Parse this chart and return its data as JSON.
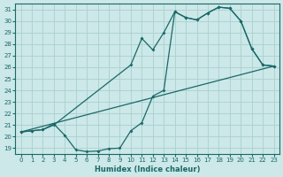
{
  "xlabel": "Humidex (Indice chaleur)",
  "bg_color": "#cce8e8",
  "grid_color": "#aad0d0",
  "line_color": "#1a6868",
  "xlim": [
    -0.5,
    23.5
  ],
  "ylim": [
    18.5,
    31.5
  ],
  "xticks": [
    0,
    1,
    2,
    3,
    4,
    5,
    6,
    7,
    8,
    9,
    10,
    11,
    12,
    13,
    14,
    15,
    16,
    17,
    18,
    19,
    20,
    21,
    22,
    23
  ],
  "yticks": [
    19,
    20,
    21,
    22,
    23,
    24,
    25,
    26,
    27,
    28,
    29,
    30,
    31
  ],
  "line1_x": [
    0,
    1,
    2,
    3,
    10,
    11,
    12,
    13,
    14,
    15,
    16,
    17,
    18,
    19,
    20,
    21,
    22,
    23
  ],
  "line1_y": [
    20.4,
    20.5,
    20.6,
    21.0,
    26.2,
    28.5,
    27.5,
    29.0,
    30.8,
    30.3,
    30.1,
    30.7,
    31.2,
    31.1,
    30.0,
    27.6,
    26.2,
    26.1
  ],
  "line2_x": [
    0,
    23
  ],
  "line2_y": [
    20.4,
    26.1
  ],
  "line3_x": [
    0,
    1,
    2,
    3,
    4,
    5,
    6,
    7,
    8,
    9,
    10,
    11,
    12,
    13,
    14,
    15,
    16,
    17,
    18,
    19,
    20,
    21,
    22,
    23
  ],
  "line3_y": [
    20.4,
    20.5,
    20.6,
    21.1,
    20.1,
    18.85,
    18.7,
    18.75,
    18.95,
    19.0,
    20.5,
    21.2,
    23.5,
    24.0,
    30.8,
    30.3,
    30.1,
    30.7,
    31.2,
    31.1,
    30.0,
    27.6,
    26.2,
    26.1
  ]
}
